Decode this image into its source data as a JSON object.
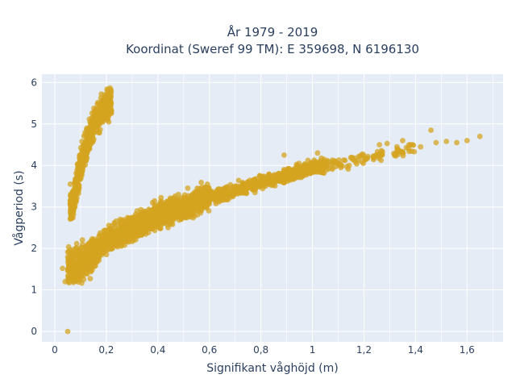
{
  "chart_data": {
    "type": "scatter",
    "title": "År 1979 - 2019",
    "subtitle": "Koordinat (Sweref 99 TM): E 359698, N 6196130",
    "xlabel": "Signifikant våghöjd (m)",
    "ylabel": "Vågperiod (s)",
    "xlim": [
      -0.05,
      1.74
    ],
    "ylim": [
      -0.25,
      6.2
    ],
    "x_ticks": [
      0,
      0.2,
      0.4,
      0.6,
      0.8,
      1,
      1.2,
      1.4,
      1.6
    ],
    "x_tick_labels": [
      "0",
      "0,2",
      "0,4",
      "0,6",
      "0,8",
      "1",
      "1,2",
      "1,4",
      "1,6"
    ],
    "y_ticks": [
      0,
      1,
      2,
      3,
      4,
      5,
      6
    ],
    "y_tick_labels": [
      "0",
      "1",
      "2",
      "3",
      "4",
      "5",
      "6"
    ],
    "grid": true,
    "marker_color": "#d4a420",
    "plot_bg": "#e5ecf6",
    "clusters": [
      {
        "name_hint": "swell-band",
        "x": [
          0.06,
          0.22
        ],
        "y": [
          2.7,
          5.9
        ],
        "trend": [
          [
            0.07,
            3.0
          ],
          [
            0.1,
            4.0
          ],
          [
            0.15,
            5.0
          ],
          [
            0.2,
            5.5
          ]
        ]
      },
      {
        "name_hint": "main-band",
        "trend": [
          [
            0.02,
            1.5
          ],
          [
            0.1,
            1.6
          ],
          [
            0.2,
            2.2
          ],
          [
            0.3,
            2.5
          ],
          [
            0.4,
            2.8
          ],
          [
            0.5,
            3.0
          ],
          [
            0.6,
            3.25
          ],
          [
            0.7,
            3.4
          ],
          [
            0.8,
            3.6
          ],
          [
            0.9,
            3.75
          ],
          [
            1.0,
            3.95
          ],
          [
            1.1,
            4.05
          ],
          [
            1.2,
            4.15
          ],
          [
            1.3,
            4.3
          ],
          [
            1.4,
            4.4
          ],
          [
            1.5,
            4.5
          ],
          [
            1.6,
            4.55
          ]
        ]
      }
    ],
    "outliers": [
      {
        "x": 0.05,
        "y": 0.0
      },
      {
        "x": 1.46,
        "y": 4.85
      },
      {
        "x": 1.65,
        "y": 4.7
      },
      {
        "x": 1.6,
        "y": 4.6
      },
      {
        "x": 1.56,
        "y": 4.55
      },
      {
        "x": 1.52,
        "y": 4.58
      },
      {
        "x": 1.48,
        "y": 4.55
      },
      {
        "x": 1.35,
        "y": 4.6
      },
      {
        "x": 1.29,
        "y": 4.53
      },
      {
        "x": 1.26,
        "y": 4.5
      },
      {
        "x": 1.42,
        "y": 4.45
      },
      {
        "x": 1.38,
        "y": 4.5
      },
      {
        "x": 1.02,
        "y": 4.3
      },
      {
        "x": 0.89,
        "y": 4.25
      },
      {
        "x": 0.04,
        "y": 1.2
      },
      {
        "x": 0.03,
        "y": 1.52
      },
      {
        "x": 0.06,
        "y": 3.55
      }
    ]
  }
}
